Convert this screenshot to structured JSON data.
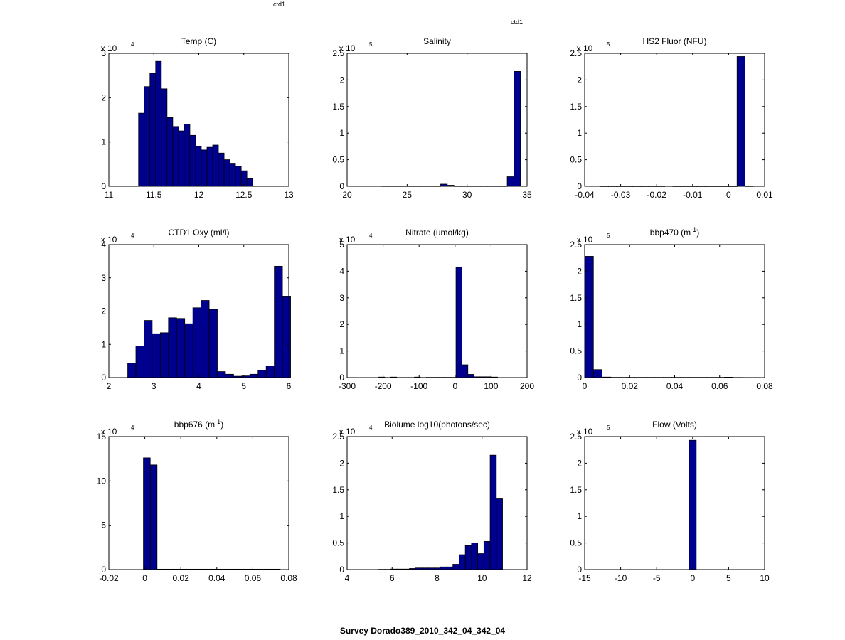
{
  "figure": {
    "suptitle": "Survey Dorado389_2010_342_04_342_04",
    "tags": [
      "ctd1",
      "ctd1"
    ]
  },
  "colors": {
    "bar_fill": "#00008f",
    "bar_edge": "#000000"
  },
  "chart_data": [
    {
      "type": "bar",
      "title": "Temp (C)",
      "exponent": "4",
      "xlim": [
        11,
        13
      ],
      "ylim": [
        0,
        3
      ],
      "xticks": [
        11,
        11.5,
        12,
        12.5,
        13
      ],
      "xtick_labels": [
        "11",
        "11.5",
        "12",
        "12.5",
        "13"
      ],
      "yticks": [
        0,
        1,
        2,
        3
      ],
      "ytick_labels": [
        "0",
        "1",
        "2",
        "3"
      ],
      "bin_start": 11.33,
      "bin_width": 0.0634,
      "values": [
        1.65,
        2.25,
        2.55,
        2.82,
        2.2,
        1.55,
        1.35,
        1.25,
        1.4,
        1.15,
        0.9,
        0.82,
        0.88,
        0.93,
        0.75,
        0.6,
        0.52,
        0.45,
        0.35,
        0.17
      ]
    },
    {
      "type": "bar",
      "title": "Salinity",
      "exponent": "5",
      "xlim": [
        20,
        35
      ],
      "ylim": [
        0,
        2.5
      ],
      "xticks": [
        20,
        25,
        30,
        35
      ],
      "xtick_labels": [
        "20",
        "25",
        "30",
        "35"
      ],
      "yticks": [
        0,
        0.5,
        1,
        1.5,
        2,
        2.5
      ],
      "ytick_labels": [
        "0",
        "0.5",
        "1",
        "1.5",
        "2",
        "2.5"
      ],
      "bin_start": 22.8,
      "bin_width": 0.555,
      "values": [
        0.005,
        0.005,
        0.005,
        0.005,
        0.005,
        0.005,
        0.005,
        0.005,
        0.005,
        0.04,
        0.02,
        0.005,
        0.005,
        0.005,
        0.005,
        0.005,
        0.005,
        0.005,
        0.005,
        0.18,
        2.16
      ]
    },
    {
      "type": "bar",
      "title": "HS2 Fluor (NFU)",
      "exponent": "5",
      "xlim": [
        -0.04,
        0.01
      ],
      "ylim": [
        0,
        2.5
      ],
      "xticks": [
        -0.04,
        -0.03,
        -0.02,
        -0.01,
        0,
        0.01
      ],
      "xtick_labels": [
        "-0.04",
        "-0.03",
        "-0.02",
        "-0.01",
        "0",
        "0.01"
      ],
      "yticks": [
        0,
        0.5,
        1,
        1.5,
        2,
        2.5
      ],
      "ytick_labels": [
        "0",
        "0.5",
        "1",
        "1.5",
        "2",
        "2.5"
      ],
      "bin_start": -0.0378,
      "bin_width": 0.00223,
      "values": [
        0.008,
        0.003,
        0.003,
        0.003,
        0.003,
        0.003,
        0.003,
        0.003,
        0.003,
        0.006,
        0.003,
        0.003,
        0.003,
        0.003,
        0.003,
        0.003,
        0.003,
        0.003,
        2.44,
        0.004
      ]
    },
    {
      "type": "bar",
      "title": "CTD1 Oxy (ml/l)",
      "exponent": "4",
      "xlim": [
        2,
        6
      ],
      "ylim": [
        0,
        4
      ],
      "xticks": [
        2,
        3,
        4,
        5,
        6
      ],
      "xtick_labels": [
        "2",
        "3",
        "4",
        "5",
        "6"
      ],
      "yticks": [
        0,
        1,
        2,
        3,
        4
      ],
      "ytick_labels": [
        "0",
        "1",
        "2",
        "3",
        "4"
      ],
      "bin_start": 2.42,
      "bin_width": 0.181,
      "values": [
        0.43,
        0.95,
        1.72,
        1.32,
        1.35,
        1.8,
        1.78,
        1.62,
        2.1,
        2.32,
        2.05,
        0.18,
        0.1,
        0.04,
        0.05,
        0.1,
        0.22,
        0.35,
        3.35,
        2.45
      ]
    },
    {
      "type": "bar",
      "title": "Nitrate (umol/kg)",
      "exponent": "4",
      "xlim": [
        -300,
        200
      ],
      "ylim": [
        0,
        5
      ],
      "xticks": [
        -300,
        -200,
        -100,
        0,
        100,
        200
      ],
      "xtick_labels": [
        "-300",
        "-200",
        "-100",
        "0",
        "100",
        "200"
      ],
      "yticks": [
        0,
        1,
        2,
        3,
        4,
        5
      ],
      "ytick_labels": [
        "0",
        "1",
        "2",
        "3",
        "4",
        "5"
      ],
      "bin_start": -212,
      "bin_width": 16.5,
      "values": [
        0.02,
        0.005,
        0.02,
        0.005,
        0.005,
        0.005,
        0.02,
        0.005,
        0.01,
        0.01,
        0.01,
        0.01,
        0.01,
        4.15,
        0.48,
        0.12,
        0.03,
        0.03,
        0.03,
        0.02
      ]
    },
    {
      "type": "bar",
      "title": "bbp470 (m",
      "title_sup": "-1",
      "title_tail": ")",
      "exponent": "5",
      "xlim": [
        0,
        0.08
      ],
      "ylim": [
        0,
        2.5
      ],
      "xticks": [
        0,
        0.02,
        0.04,
        0.06,
        0.08
      ],
      "xtick_labels": [
        "0",
        "0.02",
        "0.04",
        "0.06",
        "0.08"
      ],
      "yticks": [
        0,
        0.5,
        1,
        1.5,
        2,
        2.5
      ],
      "ytick_labels": [
        "0",
        "0.5",
        "1",
        "1.5",
        "2",
        "2.5"
      ],
      "bin_start": 0,
      "bin_width": 0.00388,
      "values": [
        2.28,
        0.15,
        0.01,
        0.005,
        0.005,
        0.005,
        0.005,
        0.005,
        0.005,
        0.005,
        0.005,
        0.005,
        0.005,
        0.005,
        0.005,
        0.005,
        0.008,
        0.003,
        0.002,
        0.002
      ]
    },
    {
      "type": "bar",
      "title": "bbp676 (m",
      "title_sup": "-1",
      "title_tail": ")",
      "exponent": "4",
      "xlim": [
        -0.02,
        0.08
      ],
      "ylim": [
        0,
        15
      ],
      "xticks": [
        -0.02,
        0,
        0.02,
        0.04,
        0.06,
        0.08
      ],
      "xtick_labels": [
        "-0.02",
        "0",
        "0.02",
        "0.04",
        "0.06",
        "0.08"
      ],
      "yticks": [
        0,
        5,
        10,
        15
      ],
      "ytick_labels": [
        "0",
        "5",
        "10",
        "15"
      ],
      "bin_start": -0.0008,
      "bin_width": 0.0038,
      "values": [
        12.6,
        11.8,
        0.05,
        0.05,
        0.05,
        0.05,
        0.05,
        0.05,
        0.05,
        0.05,
        0.05,
        0.05,
        0.05,
        0.05,
        0.05,
        0.05,
        0.05,
        0.05,
        0.05,
        0.05
      ]
    },
    {
      "type": "bar",
      "title": "Biolume log10(photons/sec)",
      "exponent": "4",
      "xlim": [
        4,
        12
      ],
      "ylim": [
        0,
        2.5
      ],
      "xticks": [
        4,
        6,
        8,
        10,
        12
      ],
      "xtick_labels": [
        "4",
        "6",
        "8",
        "10",
        "12"
      ],
      "yticks": [
        0,
        0.5,
        1,
        1.5,
        2,
        2.5
      ],
      "ytick_labels": [
        "0",
        "0.5",
        "1",
        "1.5",
        "2",
        "2.5"
      ],
      "bin_start": 5.39,
      "bin_width": 0.276,
      "values": [
        0.005,
        0.005,
        0.01,
        0.01,
        0.01,
        0.02,
        0.03,
        0.03,
        0.03,
        0.03,
        0.05,
        0.05,
        0.1,
        0.28,
        0.45,
        0.5,
        0.3,
        0.53,
        2.15,
        1.33
      ]
    },
    {
      "type": "bar",
      "title": "Flow (Volts)",
      "exponent": "5",
      "xlim": [
        -15,
        10
      ],
      "ylim": [
        0,
        2.5
      ],
      "xticks": [
        -15,
        -10,
        -5,
        0,
        5,
        10
      ],
      "xtick_labels": [
        "-15",
        "-10",
        "-5",
        "0",
        "5",
        "10"
      ],
      "yticks": [
        0,
        0.5,
        1,
        1.5,
        2,
        2.5
      ],
      "ytick_labels": [
        "0",
        "0.5",
        "1",
        "1.5",
        "2",
        "2.5"
      ],
      "bin_start": -0.5,
      "bin_width": 1.0,
      "values": [
        2.43
      ]
    }
  ]
}
